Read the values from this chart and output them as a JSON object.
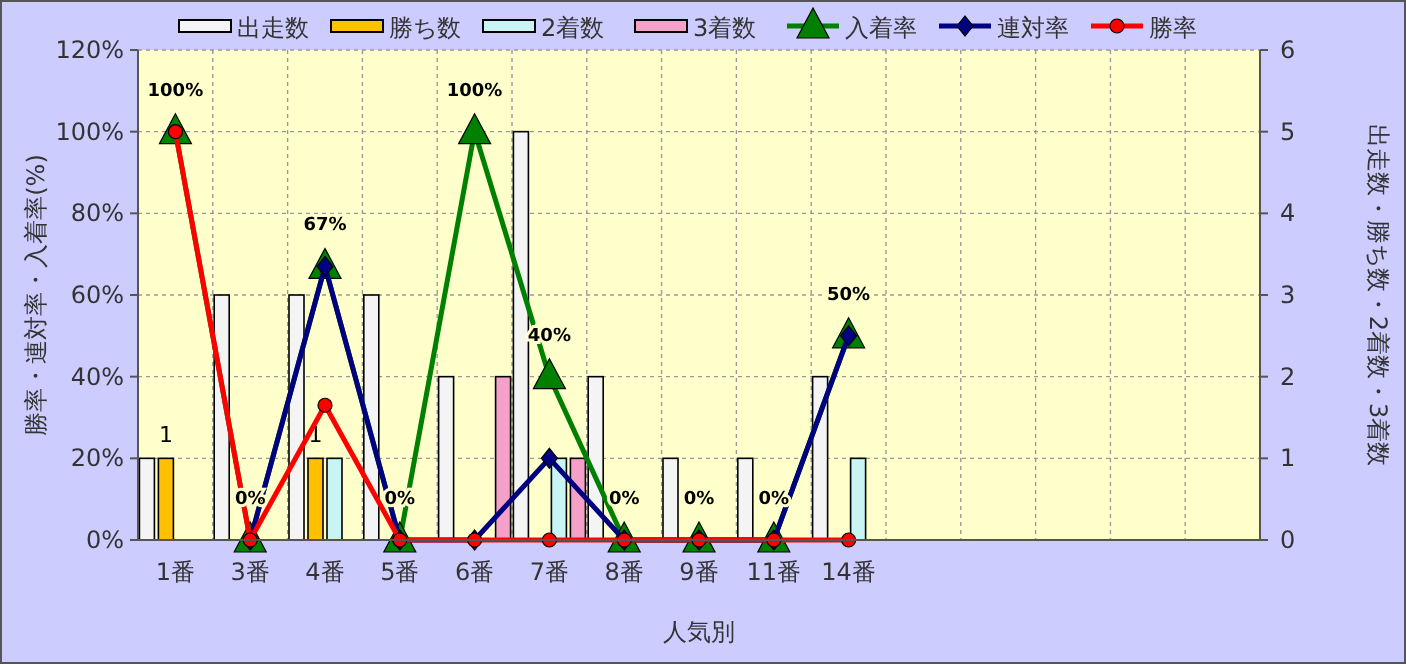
{
  "chart_data": {
    "type": "bar",
    "categories": [
      "1番",
      "3番",
      "4番",
      "5番",
      "6番",
      "7番",
      "8番",
      "9番",
      "11番",
      "14番",
      null,
      null,
      null,
      null,
      null
    ],
    "xlabel": "人気別",
    "ylabel": "勝率・連対率・入着率(%)",
    "y2label": "出走数・勝ち数・2着数・3着数",
    "series": [
      {
        "name": "出走数",
        "axis": "y2",
        "color": "#f4f4f4",
        "values": [
          1,
          3,
          3,
          3,
          2,
          5,
          2,
          1,
          1,
          2,
          null,
          null,
          null,
          null,
          null
        ]
      },
      {
        "name": "勝ち数",
        "axis": "y2",
        "color": "#ffc000",
        "values": [
          1,
          0,
          1,
          0,
          0,
          0,
          0,
          0,
          0,
          0,
          null,
          null,
          null,
          null,
          null
        ],
        "value_labels": [
          "1",
          null,
          "1",
          null,
          null,
          null,
          null,
          null,
          null,
          null,
          null,
          null,
          null,
          null,
          null
        ]
      },
      {
        "name": "2着数",
        "axis": "y2",
        "color": "#c8f4f4",
        "values": [
          0,
          0,
          1,
          0,
          0,
          1,
          0,
          0,
          0,
          1,
          null,
          null,
          null,
          null,
          null
        ]
      },
      {
        "name": "3着数",
        "axis": "y2",
        "color": "#f4a0c8",
        "values": [
          0,
          0,
          0,
          0,
          2,
          1,
          0,
          0,
          0,
          0,
          null,
          null,
          null,
          null,
          null
        ]
      },
      {
        "name": "入着率",
        "type": "line",
        "axis": "y",
        "color": "#008000",
        "marker": "triangle",
        "values": [
          100,
          0,
          67,
          0,
          100,
          40,
          0,
          0,
          0,
          50,
          null,
          null,
          null,
          null,
          null
        ],
        "value_labels": [
          "100%",
          "0%",
          "67%",
          "0%",
          "100%",
          "40%",
          "0%",
          "0%",
          "0%",
          "50%",
          null,
          null,
          null,
          null,
          null
        ]
      },
      {
        "name": "連対率",
        "type": "line",
        "axis": "y",
        "color": "#000080",
        "marker": "diamond",
        "values": [
          null,
          0,
          67,
          0,
          0,
          20,
          0,
          0,
          0,
          50,
          null,
          null,
          null,
          null,
          null
        ]
      },
      {
        "name": "勝率",
        "type": "line",
        "axis": "y",
        "color": "#ff0000",
        "marker": "circle",
        "values": [
          100,
          0,
          33,
          0,
          0,
          0,
          0,
          0,
          0,
          0,
          null,
          null,
          null,
          null,
          null
        ]
      }
    ],
    "ylim": [
      0,
      120
    ],
    "yticks": [
      {
        "value": 0,
        "label": "0%"
      },
      {
        "value": 20,
        "label": "20%"
      },
      {
        "value": 40,
        "label": "40%"
      },
      {
        "value": 60,
        "label": "60%"
      },
      {
        "value": 80,
        "label": "80%"
      },
      {
        "value": 100,
        "label": "100%"
      },
      {
        "value": 120,
        "label": "120%"
      }
    ],
    "y2lim": [
      0,
      6
    ],
    "y2ticks": [
      0,
      1,
      2,
      3,
      4,
      5,
      6
    ],
    "grid": true,
    "legend": "top"
  }
}
